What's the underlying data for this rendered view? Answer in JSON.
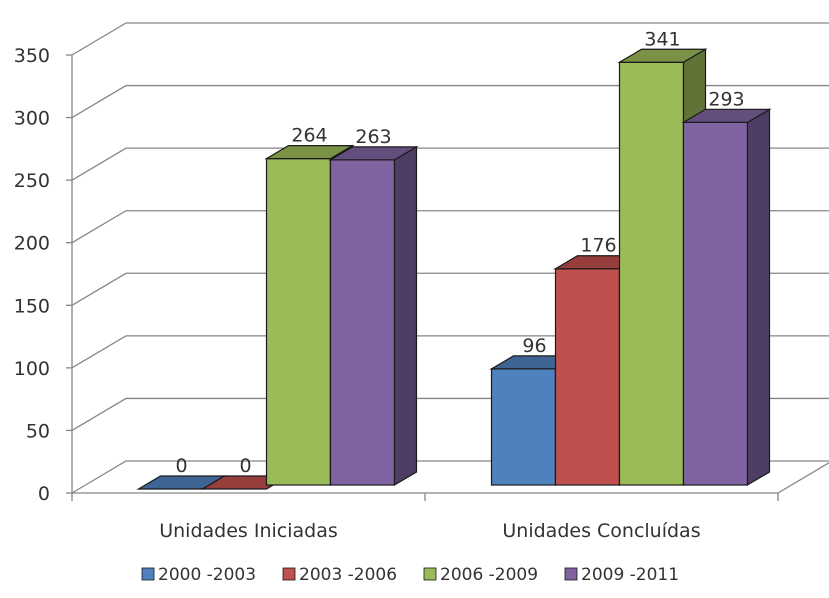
{
  "chart_data": {
    "type": "bar",
    "title": "",
    "xlabel": "",
    "ylabel": "",
    "categories": [
      "Unidades Iniciadas",
      "Unidades Concluídas"
    ],
    "series": [
      {
        "name": "2000 -2003",
        "values": [
          0,
          96
        ],
        "color": "#4f81bd"
      },
      {
        "name": "2003 -2006",
        "values": [
          0,
          176
        ],
        "color": "#c0504d"
      },
      {
        "name": "2006 -2009",
        "values": [
          264,
          341
        ],
        "color": "#9bbb59"
      },
      {
        "name": "2009 -2011",
        "values": [
          263,
          293
        ],
        "color": "#8064a2"
      }
    ],
    "ylim": [
      0,
      350
    ],
    "yticks": [
      0,
      50,
      100,
      150,
      200,
      250,
      300,
      350
    ],
    "grid": true,
    "legend": "bottom",
    "style": "3d-clustered-column"
  }
}
